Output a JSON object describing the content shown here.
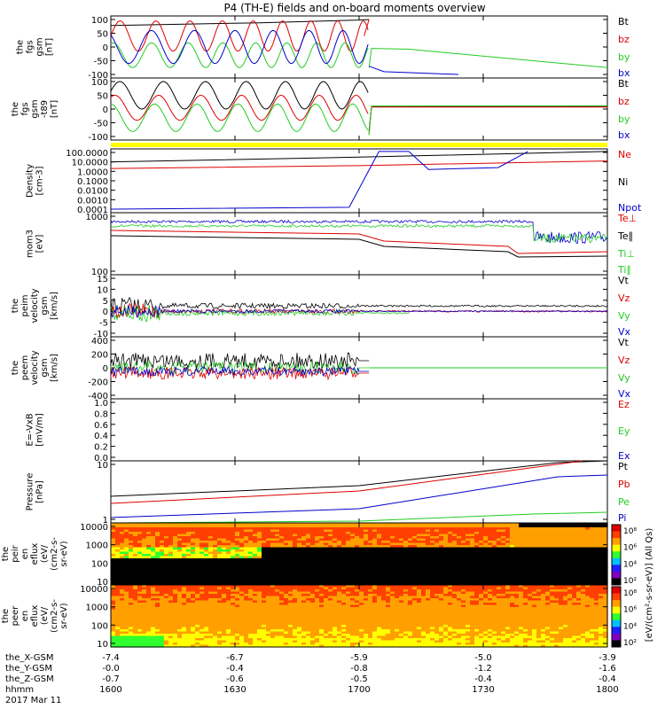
{
  "title": "P4 (TH-E) fields and on-board moments overview",
  "colors": {
    "black": "#000000",
    "red": "#dd0000",
    "green": "#22cc22",
    "blue": "#0000cc",
    "yellow": "#ffff00"
  },
  "x_axis": {
    "rows": [
      {
        "label": "the_X-GSM",
        "values": [
          "-7.4",
          "-6.7",
          "-5.9",
          "-5.0",
          "-3.9"
        ]
      },
      {
        "label": "the_Y-GSM",
        "values": [
          "-0.0",
          "-0.4",
          "-0.8",
          "-1.2",
          "-1.6"
        ]
      },
      {
        "label": "the_Z-GSM",
        "values": [
          "-0.7",
          "-0.6",
          "-0.5",
          "-0.4",
          "-0.4"
        ]
      },
      {
        "label": "hhmm",
        "values": [
          "1600",
          "1630",
          "1700",
          "1730",
          "1800"
        ]
      }
    ],
    "date": "2017 Mar 11"
  },
  "chart_data": [
    {
      "type": "line",
      "panel": "fgs_gsm",
      "ylabel": [
        "the",
        "fgs",
        "gsm",
        "[nT]"
      ],
      "ylim": [
        -100,
        100
      ],
      "ytick_labels": [
        "100",
        "50",
        "0",
        "-50",
        "-100"
      ],
      "legend": [
        "Bt",
        "bz",
        "by",
        "bx"
      ],
      "legend_colors": [
        "#000000",
        "#dd0000",
        "#22cc22",
        "#0000cc"
      ],
      "series": [
        {
          "name": "Bt",
          "color": "#000000",
          "x": [
            0,
            0.2,
            0.4,
            0.6,
            0.8,
            1
          ],
          "values": [
            80,
            85,
            88,
            92,
            96,
            100
          ],
          "after_x": [],
          "after_y": []
        },
        {
          "name": "bz",
          "color": "#dd0000",
          "osc": {
            "amp": 55,
            "mean": 40,
            "periods": [
              0.07,
              0.066,
              0.062,
              0.058,
              0.054,
              0.05
            ]
          }
        },
        {
          "name": "by",
          "color": "#22cc22",
          "osc": {
            "amp": 45,
            "mean": -30,
            "periods": [
              0.09,
              0.085,
              0.08,
              0.075,
              0.07
            ]
          }
        },
        {
          "name": "bx",
          "color": "#0000cc",
          "osc": {
            "amp": 60,
            "mean": 0,
            "periods": [
              0.11,
              0.1,
              0.09,
              0.08
            ]
          }
        }
      ]
    },
    {
      "type": "line",
      "panel": "fgs_gsm_t89",
      "ylabel": [
        "the",
        "fgs",
        "gsm",
        "-t89",
        "[nT]"
      ],
      "ylim": [
        -120,
        100
      ],
      "ytick_labels": [
        "100",
        "50",
        "0",
        "-50",
        "-100"
      ],
      "legend": [
        "Bt",
        "bz",
        "by",
        "bx"
      ],
      "legend_colors": [
        "#000000",
        "#dd0000",
        "#22cc22",
        "#0000cc"
      ]
    },
    {
      "type": "line",
      "panel": "density",
      "ylabel": [
        "Density",
        "[cm-3]"
      ],
      "yscale": "log",
      "ytick_labels": [
        "100.0000",
        "10.0000",
        "1.0000",
        "0.1000",
        "0.0100",
        "0.0010",
        "0.0001"
      ],
      "legend": [
        "Ne",
        "Ni",
        "Npot"
      ],
      "legend_colors": [
        "#dd0000",
        "#000000",
        "#0000cc"
      ]
    },
    {
      "type": "line",
      "panel": "temperature",
      "ylabel": [
        "mom3",
        "[eV]"
      ],
      "yscale": "log",
      "ytick_labels": [
        "1000",
        "100"
      ],
      "legend": [
        "Te⊥",
        "Te∥",
        "Ti⊥",
        "Ti∥"
      ],
      "legend_colors": [
        "#dd0000",
        "#000000",
        "#22cc22",
        "#22cc22"
      ]
    },
    {
      "type": "line",
      "panel": "peim_velocity",
      "ylabel": [
        "the",
        "peim",
        "velocity",
        "gsm",
        "[km/s]"
      ],
      "ylim": [
        -10,
        15
      ],
      "ytick_labels": [
        "15",
        "10",
        "5",
        "0",
        "-5",
        "-10"
      ],
      "legend": [
        "Vt",
        "Vz",
        "Vy",
        "Vx"
      ],
      "legend_colors": [
        "#000000",
        "#dd0000",
        "#22cc22",
        "#0000cc"
      ]
    },
    {
      "type": "line",
      "panel": "peem_velocity",
      "ylabel": [
        "the",
        "peem",
        "velocity",
        "gsm",
        "[km/s]"
      ],
      "ylim": [
        -400,
        400
      ],
      "ytick_labels": [
        "400",
        "200",
        "0",
        "-200",
        "-400"
      ],
      "legend": [
        "Vt",
        "Vz",
        "Vy",
        "Vx"
      ],
      "legend_colors": [
        "#000000",
        "#dd0000",
        "#22cc22",
        "#0000cc"
      ]
    },
    {
      "type": "line",
      "panel": "efield",
      "ylabel": [
        "E=-VxB",
        "[mV/m]"
      ],
      "ylim": [
        0,
        1
      ],
      "ytick_labels": [
        "1.0",
        "0.8",
        "0.6",
        "0.4",
        "0.2",
        "0.0"
      ],
      "legend": [
        "Ez",
        "Ey",
        "Ex"
      ],
      "legend_colors": [
        "#dd0000",
        "#22cc22",
        "#0000cc"
      ]
    },
    {
      "type": "line",
      "panel": "pressure",
      "ylabel": [
        "Pressure",
        "[nPa]"
      ],
      "yscale": "log",
      "ytick_labels": [
        "10",
        "1"
      ],
      "legend": [
        "Pt",
        "Pb",
        "Pe",
        "Pi"
      ],
      "legend_colors": [
        "#000000",
        "#dd0000",
        "#22cc22",
        "#0000cc"
      ]
    },
    {
      "type": "heatmap",
      "panel": "peir_eflux",
      "ylabel": [
        "the",
        "peir",
        "en",
        "eflux",
        "(eV/",
        "(cm2-s-",
        "sr-eV)"
      ],
      "yscale": "log",
      "ytick_labels": [
        "10000",
        "1000",
        "100",
        "10"
      ]
    },
    {
      "type": "heatmap",
      "panel": "peer_eflux",
      "ylabel": [
        "the",
        "peer",
        "en",
        "eflux",
        "(eV/",
        "(cm2-s-",
        "sr-eV)"
      ],
      "yscale": "log",
      "ytick_labels": [
        "10000",
        "1000",
        "100",
        "10"
      ]
    }
  ],
  "colorbar": {
    "upper_ticks": [
      "10⁸",
      "10⁶",
      "10⁴",
      "10²"
    ],
    "lower_ticks": [
      "10⁸",
      "10⁶",
      "10⁴",
      "10²"
    ],
    "label": "[eV/(cm²-s-sr-eV)] (All Qs)"
  }
}
